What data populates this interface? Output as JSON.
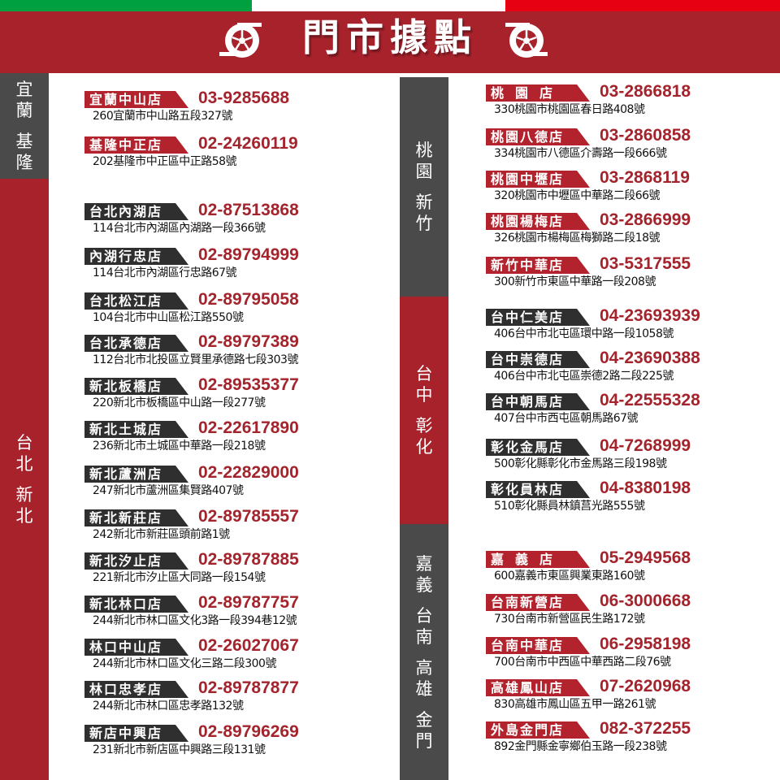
{
  "header": {
    "title": "門市據點",
    "flag_colors": [
      "#00a040",
      "#ffffff",
      "#e60012"
    ],
    "brand_color": "#a8222c",
    "icon": "wheel-icon"
  },
  "regions": [
    {
      "label": [
        "宜蘭",
        "基隆"
      ],
      "color": "#4a4a4a"
    },
    {
      "label": [
        "台北",
        "新北"
      ],
      "color": "#a8222c"
    },
    {
      "label": [
        "桃園",
        "新竹"
      ],
      "color": "#4a4a4a"
    },
    {
      "label": [
        "台中",
        "彰化"
      ],
      "color": "#a8222c"
    },
    {
      "label": [
        "嘉義",
        "台南",
        "高雄",
        "金門"
      ],
      "color": "#4a4a4a"
    }
  ],
  "stores": [
    {
      "name": "宜蘭中山店",
      "phone": "03-9285688",
      "address": "260宜蘭市中山路五段327號",
      "tag_color": "red"
    },
    {
      "name": "基隆中正店",
      "phone": "02-24260119",
      "address": "202基隆市中正區中正路58號",
      "tag_color": "red"
    },
    {
      "name": "台北內湖店",
      "phone": "02-87513868",
      "address": "114台北市內湖區內湖路一段366號",
      "tag_color": "dark"
    },
    {
      "name": "內湖行忠店",
      "phone": "02-89794999",
      "address": "114台北市內湖區行忠路67號",
      "tag_color": "dark"
    },
    {
      "name": "台北松江店",
      "phone": "02-89795058",
      "address": "104台北市中山區松江路550號",
      "tag_color": "dark"
    },
    {
      "name": "台北承德店",
      "phone": "02-89797389",
      "address": "112台北市北投區立賢里承德路七段303號",
      "tag_color": "dark"
    },
    {
      "name": "新北板橋店",
      "phone": "02-89535377",
      "address": "220新北市板橋區中山路一段277號",
      "tag_color": "dark"
    },
    {
      "name": "新北土城店",
      "phone": "02-22617890",
      "address": "236新北市土城區中華路一段218號",
      "tag_color": "dark"
    },
    {
      "name": "新北蘆洲店",
      "phone": "02-22829000",
      "address": "247新北市蘆洲區集賢路407號",
      "tag_color": "dark"
    },
    {
      "name": "新北新莊店",
      "phone": "02-89785557",
      "address": "242新北市新莊區頭前路1號",
      "tag_color": "dark"
    },
    {
      "name": "新北汐止店",
      "phone": "02-89787885",
      "address": "221新北市汐止區大同路一段154號",
      "tag_color": "dark"
    },
    {
      "name": "新北林口店",
      "phone": "02-89787757",
      "address": "244新北市林口區文化3路一段394巷12號",
      "tag_color": "dark"
    },
    {
      "name": "林口中山店",
      "phone": "02-26027067",
      "address": "244新北市林口區文化三路二段300號",
      "tag_color": "dark"
    },
    {
      "name": "林口忠孝店",
      "phone": "02-89787877",
      "address": "244新北市林口區忠孝路132號",
      "tag_color": "dark"
    },
    {
      "name": "新店中興店",
      "phone": "02-89796269",
      "address": "231新北市新店區中興路三段131號",
      "tag_color": "dark"
    },
    {
      "name": "桃園店",
      "phone": "03-2866818",
      "address": "330桃園市桃園區春日路408號",
      "tag_color": "red"
    },
    {
      "name": "桃園八德店",
      "phone": "03-2860858",
      "address": "334桃園市八德區介壽路一段666號",
      "tag_color": "red"
    },
    {
      "name": "桃園中壢店",
      "phone": "03-2868119",
      "address": "320桃園市中壢區中華路二段66號",
      "tag_color": "red"
    },
    {
      "name": "桃園楊梅店",
      "phone": "03-2866999",
      "address": "326桃園市楊梅區梅獅路二段18號",
      "tag_color": "red"
    },
    {
      "name": "新竹中華店",
      "phone": "03-5317555",
      "address": "300新竹市東區中華路一段208號",
      "tag_color": "red"
    },
    {
      "name": "台中仁美店",
      "phone": "04-23693939",
      "address": "406台中市北屯區環中路一段1058號",
      "tag_color": "dark"
    },
    {
      "name": "台中崇德店",
      "phone": "04-23690388",
      "address": "406台中市北屯區崇德2路二段225號",
      "tag_color": "dark"
    },
    {
      "name": "台中朝馬店",
      "phone": "04-22555328",
      "address": "407台中市西屯區朝馬路67號",
      "tag_color": "dark"
    },
    {
      "name": "彰化金馬店",
      "phone": "04-7268999",
      "address": "500彰化縣彰化市金馬路三段198號",
      "tag_color": "dark"
    },
    {
      "name": "彰化員林店",
      "phone": "04-8380198",
      "address": "510彰化縣員林鎮莒光路555號",
      "tag_color": "dark"
    },
    {
      "name": "嘉義店",
      "phone": "05-2949568",
      "address": "600嘉義市東區興業東路160號",
      "tag_color": "red"
    },
    {
      "name": "台南新營店",
      "phone": "06-3000668",
      "address": "730台南市新營區民生路172號",
      "tag_color": "red"
    },
    {
      "name": "台南中華店",
      "phone": "06-2958198",
      "address": "700台南市中西區中華西路二段76號",
      "tag_color": "red"
    },
    {
      "name": "高雄鳳山店",
      "phone": "07-2620968",
      "address": "830高雄市鳳山區五甲一路261號",
      "tag_color": "red"
    },
    {
      "name": "外島金門店",
      "phone": "082-372255",
      "address": "892金門縣金寧鄉伯玉路一段238號",
      "tag_color": "red"
    }
  ]
}
